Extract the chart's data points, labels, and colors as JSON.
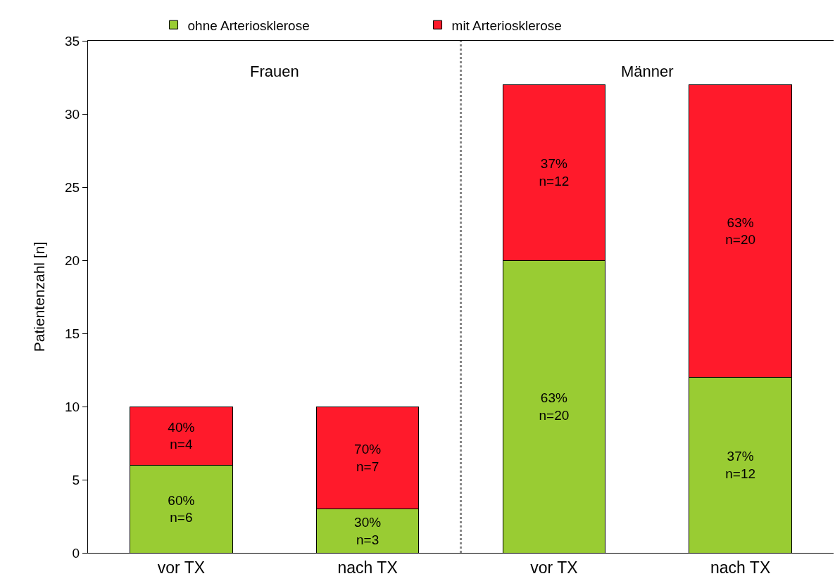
{
  "chart_data": [
    {
      "type": "bar",
      "title": "Frauen",
      "ylabel": "Patientenzahl [n]",
      "categories": [
        "vor TX",
        "nach TX"
      ],
      "stacked": true,
      "ylim": [
        0,
        35
      ],
      "yticks": [
        0,
        5,
        10,
        15,
        20,
        25,
        30,
        35
      ],
      "legend": "top",
      "series": [
        {
          "name": "ohne Arteriosklerose",
          "color": "#99cc33",
          "values": [
            6,
            3
          ],
          "value_labels": [
            "60%\nn=6",
            "30%\nn=3"
          ]
        },
        {
          "name": "mit Arteriosklerose",
          "color": "#ff1a2b",
          "values": [
            4,
            7
          ],
          "value_labels": [
            "40%\nn=4",
            "70%\nn=7"
          ]
        }
      ]
    },
    {
      "type": "bar",
      "title": "Männer",
      "categories": [
        "vor TX",
        "nach TX"
      ],
      "stacked": true,
      "ylim": [
        0,
        35
      ],
      "yticks": [
        0,
        5,
        10,
        15,
        20,
        25,
        30,
        35
      ],
      "tick_labels": "x",
      "series": [
        {
          "color": "#99cc33",
          "values": [
            20,
            12
          ],
          "value_labels": [
            "63%\nn=20",
            "37%\nn=12"
          ]
        },
        {
          "color": "#ff1a2b",
          "values": [
            12,
            20
          ],
          "value_labels": [
            "37%\nn=12",
            "63%\nn=20"
          ]
        }
      ]
    }
  ]
}
